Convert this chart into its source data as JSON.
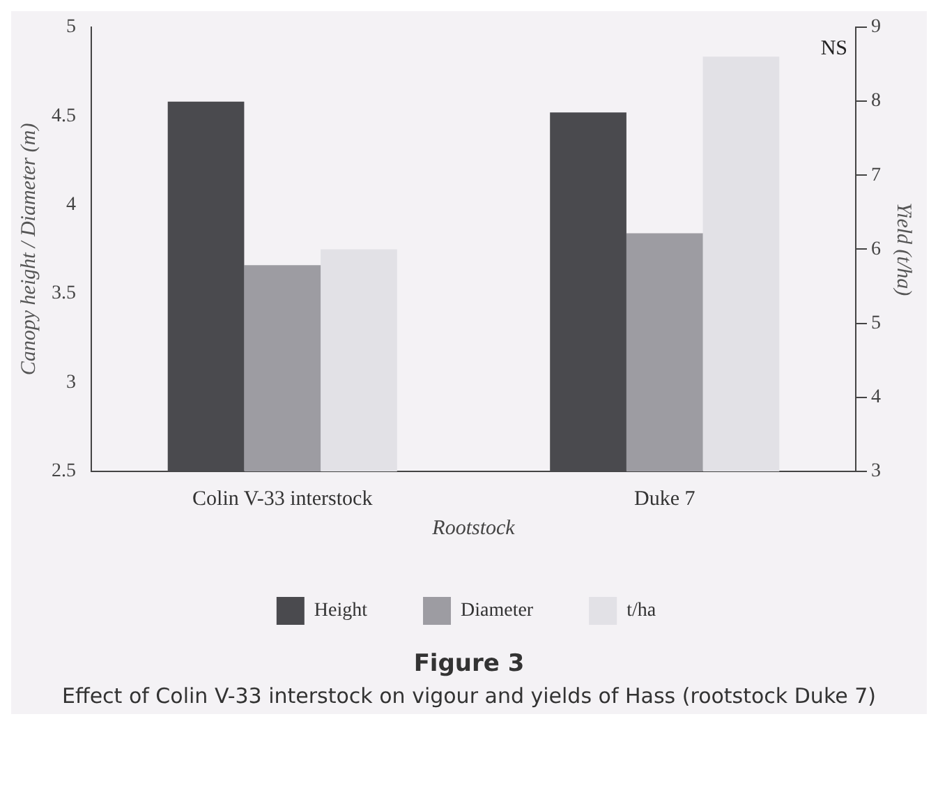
{
  "chart_data": {
    "type": "bar",
    "title": "Figure 3",
    "subtitle": "Effect of Colin V-33 interstock on vigour and yields of Hass (rootstock Duke 7)",
    "xlabel": "Rootstock",
    "ylabel": "Canopy height / Diameter (m)",
    "y2label": "Yield (t/ha)",
    "categories": [
      "Colin V-33 interstock",
      "Duke 7"
    ],
    "series": [
      {
        "name": "Height",
        "color": "#4a4a4e",
        "values": [
          4.58,
          4.52
        ]
      },
      {
        "name": "Diameter",
        "color": "#9d9ca2",
        "values": [
          3.66,
          3.84
        ]
      },
      {
        "name": "t/ha",
        "color": "#e2e1e6",
        "values": [
          6.0,
          8.6
        ],
        "axis": "y2"
      }
    ],
    "ylim": [
      2.5,
      5
    ],
    "yticks": [
      2.5,
      3,
      3.5,
      4,
      4.5,
      5
    ],
    "y2lim": [
      3,
      9
    ],
    "y2ticks": [
      3,
      4,
      5,
      6,
      7,
      8,
      9
    ],
    "annotations": [
      "NS"
    ],
    "grid": false,
    "legend": "bottom"
  }
}
